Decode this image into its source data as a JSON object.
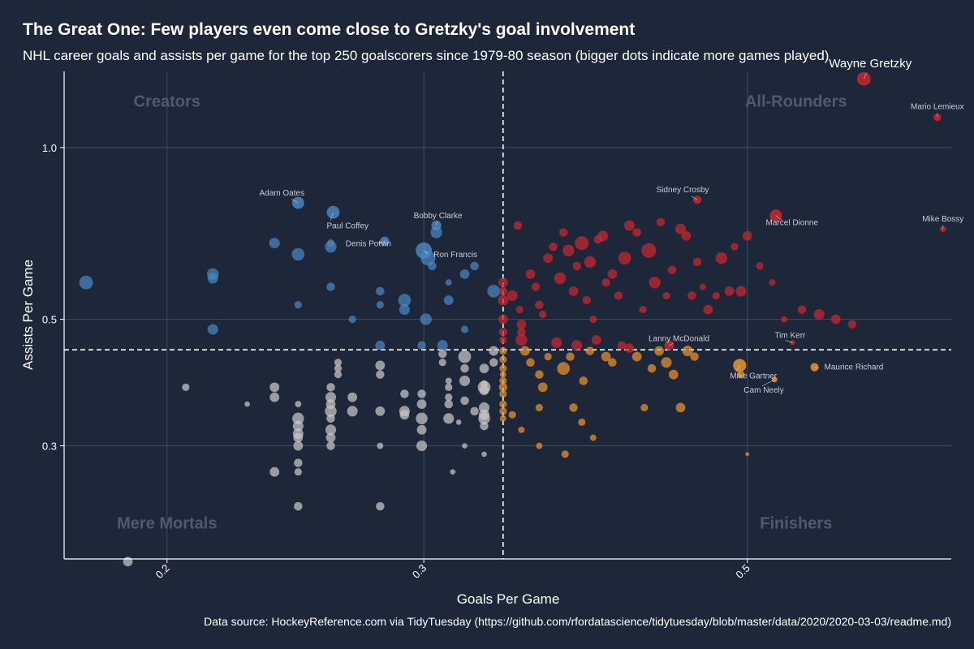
{
  "title": "The Great One: Few players even come close to Gretzky's goal involvement",
  "subtitle": "NHL career goals and assists per game for the top 250 goalscorers since 1979-80 season (bigger dots indicate more games played)",
  "caption": "Data source: HockeyReference.com via TidyTuesday (https://github.com/rfordatascience/tidytuesday/blob/master/data/2020/2020-03-03/readme.md)",
  "colors": {
    "background": "#1e2639",
    "grid": "#34475f",
    "creators": "#4a86c0",
    "all_rounders": "#c8282e",
    "finishers": "#e9962b",
    "mere_mortals": "#c9c9c9",
    "quadrant_label": "#4e5a70"
  },
  "chart_data": {
    "type": "scatter",
    "x_scale": "log",
    "y_scale": "log",
    "xlabel": "Goals Per Game",
    "ylabel": "Assists Per Game",
    "xlim": [
      0.17,
      0.69
    ],
    "ylim": [
      0.19,
      1.36
    ],
    "x_ticks": [
      0.2,
      0.3,
      0.5
    ],
    "y_ticks": [
      0.3,
      0.5,
      1.0
    ],
    "x_tick_labels": [
      "0.2",
      "0.3",
      "0.5"
    ],
    "y_tick_labels": [
      "0.3",
      "0.5",
      "1.0"
    ],
    "grid": true,
    "reference_lines": {
      "x": 0.34,
      "y": 0.442
    },
    "quadrant_labels": [
      {
        "text": "Creators",
        "x": 0.2,
        "y": 1.18
      },
      {
        "text": "All-Rounders",
        "x": 0.54,
        "y": 1.18
      },
      {
        "text": "Mere Mortals",
        "x": 0.2,
        "y": 0.215
      },
      {
        "text": "Finishers",
        "x": 0.54,
        "y": 0.215
      }
    ],
    "labeled_points": [
      {
        "name": "Wayne Gretzky",
        "x": 0.601,
        "y": 1.32,
        "g": 1487
      },
      {
        "name": "Mario Lemieux",
        "x": 0.675,
        "y": 1.13,
        "g": 915
      },
      {
        "name": "Mike Bossy",
        "x": 0.681,
        "y": 0.72,
        "g": 752
      },
      {
        "name": "Sidney Crosby",
        "x": 0.462,
        "y": 0.81,
        "g": 984
      },
      {
        "name": "Marcel Dionne",
        "x": 0.523,
        "y": 0.76,
        "g": 1348
      },
      {
        "name": "Adam Oates",
        "x": 0.246,
        "y": 0.8,
        "g": 1337
      },
      {
        "name": "Paul Coffey",
        "x": 0.26,
        "y": 0.77,
        "g": 1409
      },
      {
        "name": "Bobby Clarke",
        "x": 0.306,
        "y": 0.73,
        "g": 1144
      },
      {
        "name": "Denis Potvin",
        "x": 0.282,
        "y": 0.685,
        "g": 1060
      },
      {
        "name": "Ron Francis",
        "x": 0.3,
        "y": 0.66,
        "g": 1731
      },
      {
        "name": "Lanny McDonald",
        "x": 0.442,
        "y": 0.45,
        "g": 1111
      },
      {
        "name": "Tim Kerr",
        "x": 0.537,
        "y": 0.455,
        "g": 655
      },
      {
        "name": "Maurice Richard",
        "x": 0.556,
        "y": 0.412,
        "g": 978
      },
      {
        "name": "Mike Gartner",
        "x": 0.494,
        "y": 0.415,
        "g": 1432
      },
      {
        "name": "Cam Neely",
        "x": 0.522,
        "y": 0.392,
        "g": 726
      }
    ],
    "points": [
      [
        0.176,
        0.58,
        1500
      ],
      [
        0.188,
        0.188,
        1100
      ],
      [
        0.206,
        0.38,
        900
      ],
      [
        0.215,
        0.6,
        1300
      ],
      [
        0.215,
        0.59,
        1200
      ],
      [
        0.215,
        0.48,
        1200
      ],
      [
        0.227,
        0.355,
        700
      ],
      [
        0.237,
        0.68,
        1200
      ],
      [
        0.237,
        0.38,
        1100
      ],
      [
        0.237,
        0.365,
        1100
      ],
      [
        0.237,
        0.27,
        1100
      ],
      [
        0.246,
        0.53,
        900
      ],
      [
        0.246,
        0.65,
        1400
      ],
      [
        0.246,
        0.335,
        1300
      ],
      [
        0.246,
        0.325,
        1200
      ],
      [
        0.246,
        0.315,
        1200
      ],
      [
        0.246,
        0.31,
        1100
      ],
      [
        0.246,
        0.3,
        1100
      ],
      [
        0.246,
        0.28,
        1000
      ],
      [
        0.246,
        0.27,
        900
      ],
      [
        0.246,
        0.235,
        1000
      ],
      [
        0.246,
        0.355,
        800
      ],
      [
        0.259,
        0.67,
        1300
      ],
      [
        0.259,
        0.57,
        1000
      ],
      [
        0.259,
        0.68,
        900
      ],
      [
        0.259,
        0.38,
        1000
      ],
      [
        0.259,
        0.365,
        1200
      ],
      [
        0.259,
        0.355,
        1100
      ],
      [
        0.259,
        0.345,
        1300
      ],
      [
        0.259,
        0.335,
        1000
      ],
      [
        0.259,
        0.32,
        1200
      ],
      [
        0.259,
        0.31,
        1100
      ],
      [
        0.259,
        0.3,
        1000
      ],
      [
        0.262,
        0.42,
        900
      ],
      [
        0.262,
        0.41,
        900
      ],
      [
        0.262,
        0.4,
        900
      ],
      [
        0.268,
        0.5,
        900
      ],
      [
        0.268,
        0.365,
        1100
      ],
      [
        0.268,
        0.345,
        1200
      ],
      [
        0.28,
        0.56,
        1000
      ],
      [
        0.28,
        0.53,
        900
      ],
      [
        0.28,
        0.45,
        1100
      ],
      [
        0.28,
        0.415,
        1100
      ],
      [
        0.28,
        0.4,
        1000
      ],
      [
        0.28,
        0.345,
        1100
      ],
      [
        0.28,
        0.3,
        800
      ],
      [
        0.28,
        0.235,
        1000
      ],
      [
        0.291,
        0.54,
        1400
      ],
      [
        0.291,
        0.52,
        1200
      ],
      [
        0.291,
        0.37,
        1000
      ],
      [
        0.291,
        0.345,
        1200
      ],
      [
        0.291,
        0.34,
        1100
      ],
      [
        0.299,
        0.45,
        1000
      ],
      [
        0.299,
        0.37,
        1000
      ],
      [
        0.299,
        0.355,
        1100
      ],
      [
        0.299,
        0.335,
        1300
      ],
      [
        0.299,
        0.32,
        1100
      ],
      [
        0.299,
        0.3,
        1200
      ],
      [
        0.301,
        0.5,
        1300
      ],
      [
        0.302,
        0.64,
        1600
      ],
      [
        0.304,
        0.62,
        1000
      ],
      [
        0.306,
        0.71,
        1300
      ],
      [
        0.309,
        0.45,
        1200
      ],
      [
        0.309,
        0.435,
        1000
      ],
      [
        0.309,
        0.42,
        900
      ],
      [
        0.312,
        0.54,
        1100
      ],
      [
        0.312,
        0.58,
        800
      ],
      [
        0.312,
        0.355,
        1000
      ],
      [
        0.312,
        0.365,
        900
      ],
      [
        0.312,
        0.38,
        900
      ],
      [
        0.312,
        0.39,
        800
      ],
      [
        0.312,
        0.335,
        1200
      ],
      [
        0.32,
        0.6,
        1100
      ],
      [
        0.32,
        0.48,
        900
      ],
      [
        0.32,
        0.43,
        1400
      ],
      [
        0.32,
        0.41,
        1000
      ],
      [
        0.32,
        0.39,
        1200
      ],
      [
        0.32,
        0.36,
        1000
      ],
      [
        0.32,
        0.3,
        700
      ],
      [
        0.325,
        0.62,
        1000
      ],
      [
        0.33,
        0.41,
        1100
      ],
      [
        0.33,
        0.385,
        900
      ],
      [
        0.33,
        0.375,
        1100
      ],
      [
        0.33,
        0.35,
        1200
      ],
      [
        0.33,
        0.34,
        1200
      ],
      [
        0.33,
        0.335,
        1300
      ],
      [
        0.33,
        0.325,
        1000
      ],
      [
        0.33,
        0.29,
        700
      ],
      [
        0.335,
        0.56,
        1400
      ],
      [
        0.335,
        0.44,
        1100
      ],
      [
        0.335,
        0.42,
        1000
      ],
      [
        0.34,
        0.58,
        1100
      ],
      [
        0.34,
        0.56,
        1000
      ],
      [
        0.34,
        0.54,
        1200
      ],
      [
        0.34,
        0.5,
        1100
      ],
      [
        0.34,
        0.475,
        1000
      ],
      [
        0.34,
        0.46,
        900
      ],
      [
        0.34,
        0.44,
        900
      ],
      [
        0.34,
        0.425,
        900
      ],
      [
        0.34,
        0.41,
        900
      ],
      [
        0.34,
        0.4,
        800
      ],
      [
        0.34,
        0.39,
        900
      ],
      [
        0.34,
        0.38,
        1000
      ],
      [
        0.34,
        0.37,
        900
      ],
      [
        0.34,
        0.355,
        900
      ],
      [
        0.34,
        0.345,
        900
      ],
      [
        0.34,
        0.335,
        800
      ],
      [
        0.33,
        0.38,
        1400
      ],
      [
        0.325,
        0.345,
        1000
      ],
      [
        0.317,
        0.33,
        700
      ],
      [
        0.314,
        0.27,
        700
      ],
      [
        0.345,
        0.55,
        1200
      ],
      [
        0.348,
        0.73,
        1000
      ],
      [
        0.349,
        0.52,
        900
      ],
      [
        0.35,
        0.49,
        1100
      ],
      [
        0.35,
        0.475,
        1000
      ],
      [
        0.355,
        0.6,
        1100
      ],
      [
        0.358,
        0.57,
        1000
      ],
      [
        0.36,
        0.53,
        1000
      ],
      [
        0.362,
        0.51,
        900
      ],
      [
        0.365,
        0.64,
        1100
      ],
      [
        0.368,
        0.67,
        1000
      ],
      [
        0.372,
        0.59,
        1300
      ],
      [
        0.374,
        0.71,
        1000
      ],
      [
        0.377,
        0.66,
        1300
      ],
      [
        0.38,
        0.56,
        1100
      ],
      [
        0.382,
        0.62,
        1000
      ],
      [
        0.385,
        0.68,
        1500
      ],
      [
        0.388,
        0.54,
        1000
      ],
      [
        0.39,
        0.63,
        1300
      ],
      [
        0.392,
        0.5,
        900
      ],
      [
        0.395,
        0.69,
        1000
      ],
      [
        0.398,
        0.7,
        1200
      ],
      [
        0.4,
        0.58,
        1000
      ],
      [
        0.404,
        0.6,
        1100
      ],
      [
        0.408,
        0.55,
        1000
      ],
      [
        0.412,
        0.64,
        1400
      ],
      [
        0.415,
        0.73,
        1200
      ],
      [
        0.42,
        0.71,
        1000
      ],
      [
        0.424,
        0.52,
        900
      ],
      [
        0.428,
        0.66,
        1600
      ],
      [
        0.432,
        0.58,
        1300
      ],
      [
        0.436,
        0.74,
        1000
      ],
      [
        0.44,
        0.55,
        900
      ],
      [
        0.444,
        0.61,
        1000
      ],
      [
        0.45,
        0.72,
        1200
      ],
      [
        0.454,
        0.7,
        1100
      ],
      [
        0.458,
        0.55,
        1000
      ],
      [
        0.462,
        0.63,
        1000
      ],
      [
        0.466,
        0.57,
        800
      ],
      [
        0.47,
        0.52,
        1100
      ],
      [
        0.476,
        0.55,
        900
      ],
      [
        0.48,
        0.64,
        1300
      ],
      [
        0.486,
        0.56,
        1100
      ],
      [
        0.49,
        0.67,
        900
      ],
      [
        0.495,
        0.56,
        1200
      ],
      [
        0.5,
        0.7,
        1100
      ],
      [
        0.51,
        0.62,
        900
      ],
      [
        0.52,
        0.58,
        800
      ],
      [
        0.53,
        0.5,
        800
      ],
      [
        0.545,
        0.52,
        1000
      ],
      [
        0.56,
        0.51,
        1200
      ],
      [
        0.575,
        0.5,
        1100
      ],
      [
        0.59,
        0.49,
        1000
      ],
      [
        0.35,
        0.46,
        1300
      ],
      [
        0.352,
        0.44,
        1100
      ],
      [
        0.355,
        0.42,
        1000
      ],
      [
        0.36,
        0.4,
        1000
      ],
      [
        0.362,
        0.38,
        1100
      ],
      [
        0.365,
        0.43,
        900
      ],
      [
        0.37,
        0.455,
        1200
      ],
      [
        0.374,
        0.41,
        1400
      ],
      [
        0.378,
        0.43,
        1000
      ],
      [
        0.382,
        0.45,
        1200
      ],
      [
        0.386,
        0.39,
        1000
      ],
      [
        0.39,
        0.44,
        1000
      ],
      [
        0.394,
        0.46,
        1100
      ],
      [
        0.4,
        0.43,
        1100
      ],
      [
        0.404,
        0.42,
        1000
      ],
      [
        0.41,
        0.45,
        1000
      ],
      [
        0.415,
        0.445,
        1100
      ],
      [
        0.42,
        0.43,
        1100
      ],
      [
        0.425,
        0.35,
        900
      ],
      [
        0.43,
        0.41,
        1000
      ],
      [
        0.435,
        0.44,
        1100
      ],
      [
        0.44,
        0.42,
        1200
      ],
      [
        0.445,
        0.4,
        1100
      ],
      [
        0.45,
        0.35,
        1100
      ],
      [
        0.455,
        0.44,
        1200
      ],
      [
        0.46,
        0.43,
        1000
      ],
      [
        0.495,
        0.4,
        900
      ],
      [
        0.5,
        0.29,
        500
      ],
      [
        0.35,
        0.32,
        800
      ],
      [
        0.36,
        0.3,
        800
      ],
      [
        0.375,
        0.29,
        900
      ],
      [
        0.385,
        0.33,
        900
      ],
      [
        0.392,
        0.31,
        800
      ],
      [
        0.38,
        0.35,
        1000
      ],
      [
        0.36,
        0.35,
        900
      ],
      [
        0.345,
        0.34,
        900
      ]
    ]
  }
}
